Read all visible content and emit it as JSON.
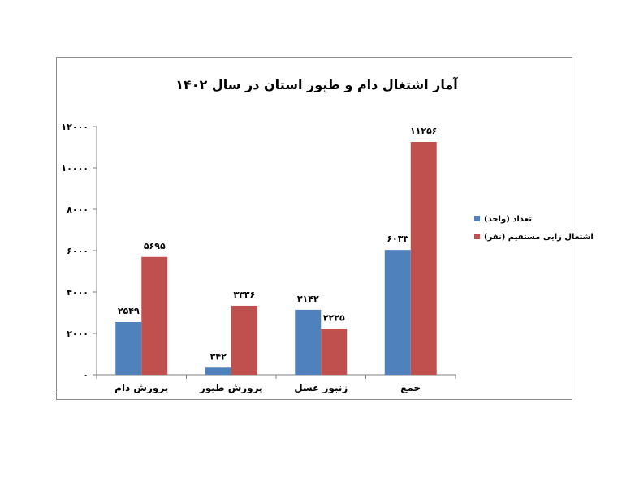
{
  "chart_data": {
    "type": "bar",
    "title": "آمار اشتغال دام و طیور استان در سال ۱۴۰۲",
    "categories": [
      "پرورش دام",
      "پرورش طیور",
      "زنبور عسل",
      "جمع"
    ],
    "series": [
      {
        "name": "تعداد (واحد)",
        "color": "#4f81bd",
        "values": [
          2549,
          342,
          3142,
          6033
        ],
        "labels": [
          "۲۵۴۹",
          "۳۴۲",
          "۳۱۴۲",
          "۶۰۳۳"
        ]
      },
      {
        "name": "اشتغال زایی مستقیم (نفر)",
        "color": "#c0504d",
        "values": [
          5695,
          3336,
          2225,
          11256
        ],
        "labels": [
          "۵۶۹۵",
          "۳۳۳۶",
          "۲۲۲۵",
          "۱۱۲۵۶"
        ]
      }
    ],
    "ylim": [
      0,
      12000
    ],
    "yticks": [
      0,
      2000,
      4000,
      6000,
      8000,
      10000,
      12000
    ],
    "ytick_labels": [
      "۰",
      "۲۰۰۰",
      "۴۰۰۰",
      "۶۰۰۰",
      "۸۰۰۰",
      "۱۰۰۰۰",
      "۱۲۰۰۰"
    ],
    "grid": false,
    "legend_position": "right"
  }
}
